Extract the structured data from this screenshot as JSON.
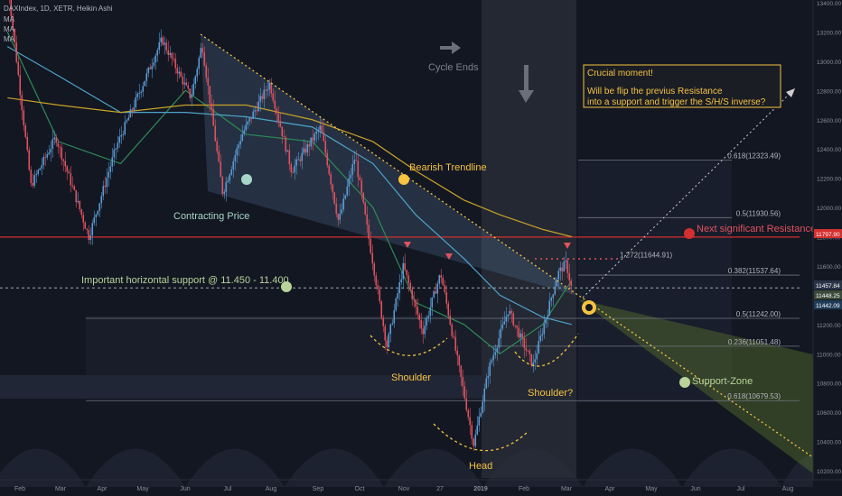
{
  "header": {
    "symbol_line": "DAXIndex, 1D, XETR, Heikin Ashi",
    "indicator_1": "MA",
    "indicator_2": "MA",
    "indicator_3": "MA"
  },
  "colors": {
    "background": "#131722",
    "candle_up": "#5b9bd5",
    "candle_down": "#e0525f",
    "ma_fast": "#2e8b57",
    "ma_mid": "#4ea3c9",
    "ma_slow": "#c9a227",
    "resistance": "#d32f2f",
    "annotation_yellow": "#f5c242",
    "support_zone": "#8aa74a",
    "fib_line": "#8a8a8a"
  },
  "annotations": {
    "cycle_ends": "Cycle Ends",
    "crucial_title": "Crucial moment!",
    "crucial_line1": "Will be flip the previus Resistance",
    "crucial_line2": "into a support and trigger the S/H/S inverse?",
    "bearish_trendline": "Bearish Trendline",
    "contracting_price": "Contracting Price",
    "important_support": "Important horizontal support @ 11.450 - 11.400",
    "next_resistance": "Next significant Resistance",
    "support_zone": "Support-Zone",
    "shoulder_left": "Shoulder",
    "shoulder_right": "Shoulder?",
    "head": "Head"
  },
  "fib_labels": [
    {
      "ratio": "0.618",
      "text": "0.618(12323.49)",
      "price": 12323.49
    },
    {
      "ratio": "0.5",
      "text": "0.5(11930.56)",
      "price": 11930.56
    },
    {
      "ratio": "0.382",
      "text": "0.382(11537.64)",
      "price": 11537.64
    },
    {
      "ratio": "0.5",
      "text": "0.5(11242.00)",
      "price": 11242.0
    },
    {
      "ratio": "0.236",
      "text": "0.236(11051.48)",
      "price": 11051.48
    },
    {
      "ratio": "0.618",
      "text": "0.618(10679.53)",
      "price": 10679.53
    },
    {
      "ratio": "1.272",
      "text": "1.272(11644.91)",
      "price": 11644.91
    }
  ],
  "price_tags": [
    {
      "text": "11797.90",
      "price": 11797.9,
      "color": "#d32f2f"
    },
    {
      "text": "11457.84",
      "price": 11457.84,
      "color": "#2a3447"
    },
    {
      "text": "11448.25",
      "price": 11448.25,
      "color": "#3b4a3a"
    },
    {
      "text": "11442.09",
      "price": 11442.09,
      "color": "#1f3b57"
    }
  ],
  "chart_data": {
    "type": "candlestick",
    "title": "DAXIndex, 1D, XETR, Heikin Ashi",
    "x_tick_labels": [
      "Feb",
      "Mar",
      "Apr",
      "May",
      "Jun",
      "Jul",
      "Aug",
      "Sep",
      "Oct",
      "Nov",
      "27",
      "2019",
      "Feb",
      "Mar",
      "Apr",
      "May",
      "Jun",
      "Jul",
      "Aug"
    ],
    "y_tick_labels": [
      "13400.00",
      "13200.00",
      "13000.00",
      "12800.00",
      "12600.00",
      "12400.00",
      "12200.00",
      "12000.00",
      "11800.00",
      "11600.00",
      "11400.00",
      "11200.00",
      "11000.00",
      "10800.00",
      "10600.00",
      "10400.00",
      "10200.00"
    ],
    "ylim": [
      10150,
      13420
    ],
    "horizontal_levels": {
      "next_resistance": 11797.9,
      "horizontal_support": 11450
    },
    "price_path": [
      {
        "date": "2018-01-23",
        "price": 13550
      },
      {
        "date": "2018-02-09",
        "price": 12150
      },
      {
        "date": "2018-02-27",
        "price": 12480
      },
      {
        "date": "2018-03-23",
        "price": 11800
      },
      {
        "date": "2018-04-12",
        "price": 12420
      },
      {
        "date": "2018-05-15",
        "price": 13150
      },
      {
        "date": "2018-06-05",
        "price": 12750
      },
      {
        "date": "2018-06-13",
        "price": 13120
      },
      {
        "date": "2018-06-28",
        "price": 12100
      },
      {
        "date": "2018-07-12",
        "price": 12500
      },
      {
        "date": "2018-08-01",
        "price": 12850
      },
      {
        "date": "2018-08-17",
        "price": 12250
      },
      {
        "date": "2018-09-07",
        "price": 12550
      },
      {
        "date": "2018-09-20",
        "price": 11900
      },
      {
        "date": "2018-10-02",
        "price": 12350
      },
      {
        "date": "2018-10-25",
        "price": 11050
      },
      {
        "date": "2018-11-06",
        "price": 11600
      },
      {
        "date": "2018-11-20",
        "price": 11150
      },
      {
        "date": "2018-12-03",
        "price": 11550
      },
      {
        "date": "2018-12-27",
        "price": 10380
      },
      {
        "date": "2019-01-07",
        "price": 10900
      },
      {
        "date": "2019-01-21",
        "price": 11300
      },
      {
        "date": "2019-02-08",
        "price": 10920
      },
      {
        "date": "2019-02-26",
        "price": 11550
      },
      {
        "date": "2019-03-04",
        "price": 11620
      },
      {
        "date": "2019-03-08",
        "price": 11440
      }
    ],
    "moving_averages": [
      {
        "name": "MA",
        "color": "#2e8b57",
        "points": [
          [
            "2018-01-23",
            13200
          ],
          [
            "2018-03-01",
            12450
          ],
          [
            "2018-04-15",
            12300
          ],
          [
            "2018-06-01",
            12800
          ],
          [
            "2018-07-15",
            12500
          ],
          [
            "2018-09-01",
            12450
          ],
          [
            "2018-10-15",
            12000
          ],
          [
            "2018-11-15",
            11350
          ],
          [
            "2018-12-20",
            11200
          ],
          [
            "2019-01-15",
            11000
          ],
          [
            "2019-02-15",
            11200
          ],
          [
            "2019-03-08",
            11500
          ]
        ]
      },
      {
        "name": "MA",
        "color": "#4ea3c9",
        "points": [
          [
            "2018-01-23",
            13100
          ],
          [
            "2018-03-01",
            12900
          ],
          [
            "2018-04-15",
            12650
          ],
          [
            "2018-06-01",
            12650
          ],
          [
            "2018-07-15",
            12620
          ],
          [
            "2018-09-01",
            12550
          ],
          [
            "2018-10-15",
            12300
          ],
          [
            "2018-11-15",
            11950
          ],
          [
            "2018-12-20",
            11650
          ],
          [
            "2019-01-15",
            11400
          ],
          [
            "2019-02-15",
            11250
          ],
          [
            "2019-03-08",
            11200
          ]
        ]
      },
      {
        "name": "MA",
        "color": "#c9a227",
        "points": [
          [
            "2018-01-23",
            12750
          ],
          [
            "2018-03-01",
            12700
          ],
          [
            "2018-04-15",
            12650
          ],
          [
            "2018-06-01",
            12700
          ],
          [
            "2018-07-15",
            12700
          ],
          [
            "2018-09-01",
            12600
          ],
          [
            "2018-10-15",
            12450
          ],
          [
            "2018-11-15",
            12250
          ],
          [
            "2018-12-20",
            12050
          ],
          [
            "2019-01-15",
            11950
          ],
          [
            "2019-02-15",
            11850
          ],
          [
            "2019-03-08",
            11800
          ]
        ]
      }
    ],
    "fibonacci_levels": [
      12323.49,
      11930.56,
      11537.64,
      11242.0,
      11051.48,
      10679.53,
      11644.91
    ],
    "grid": false,
    "legend": "top-left"
  }
}
